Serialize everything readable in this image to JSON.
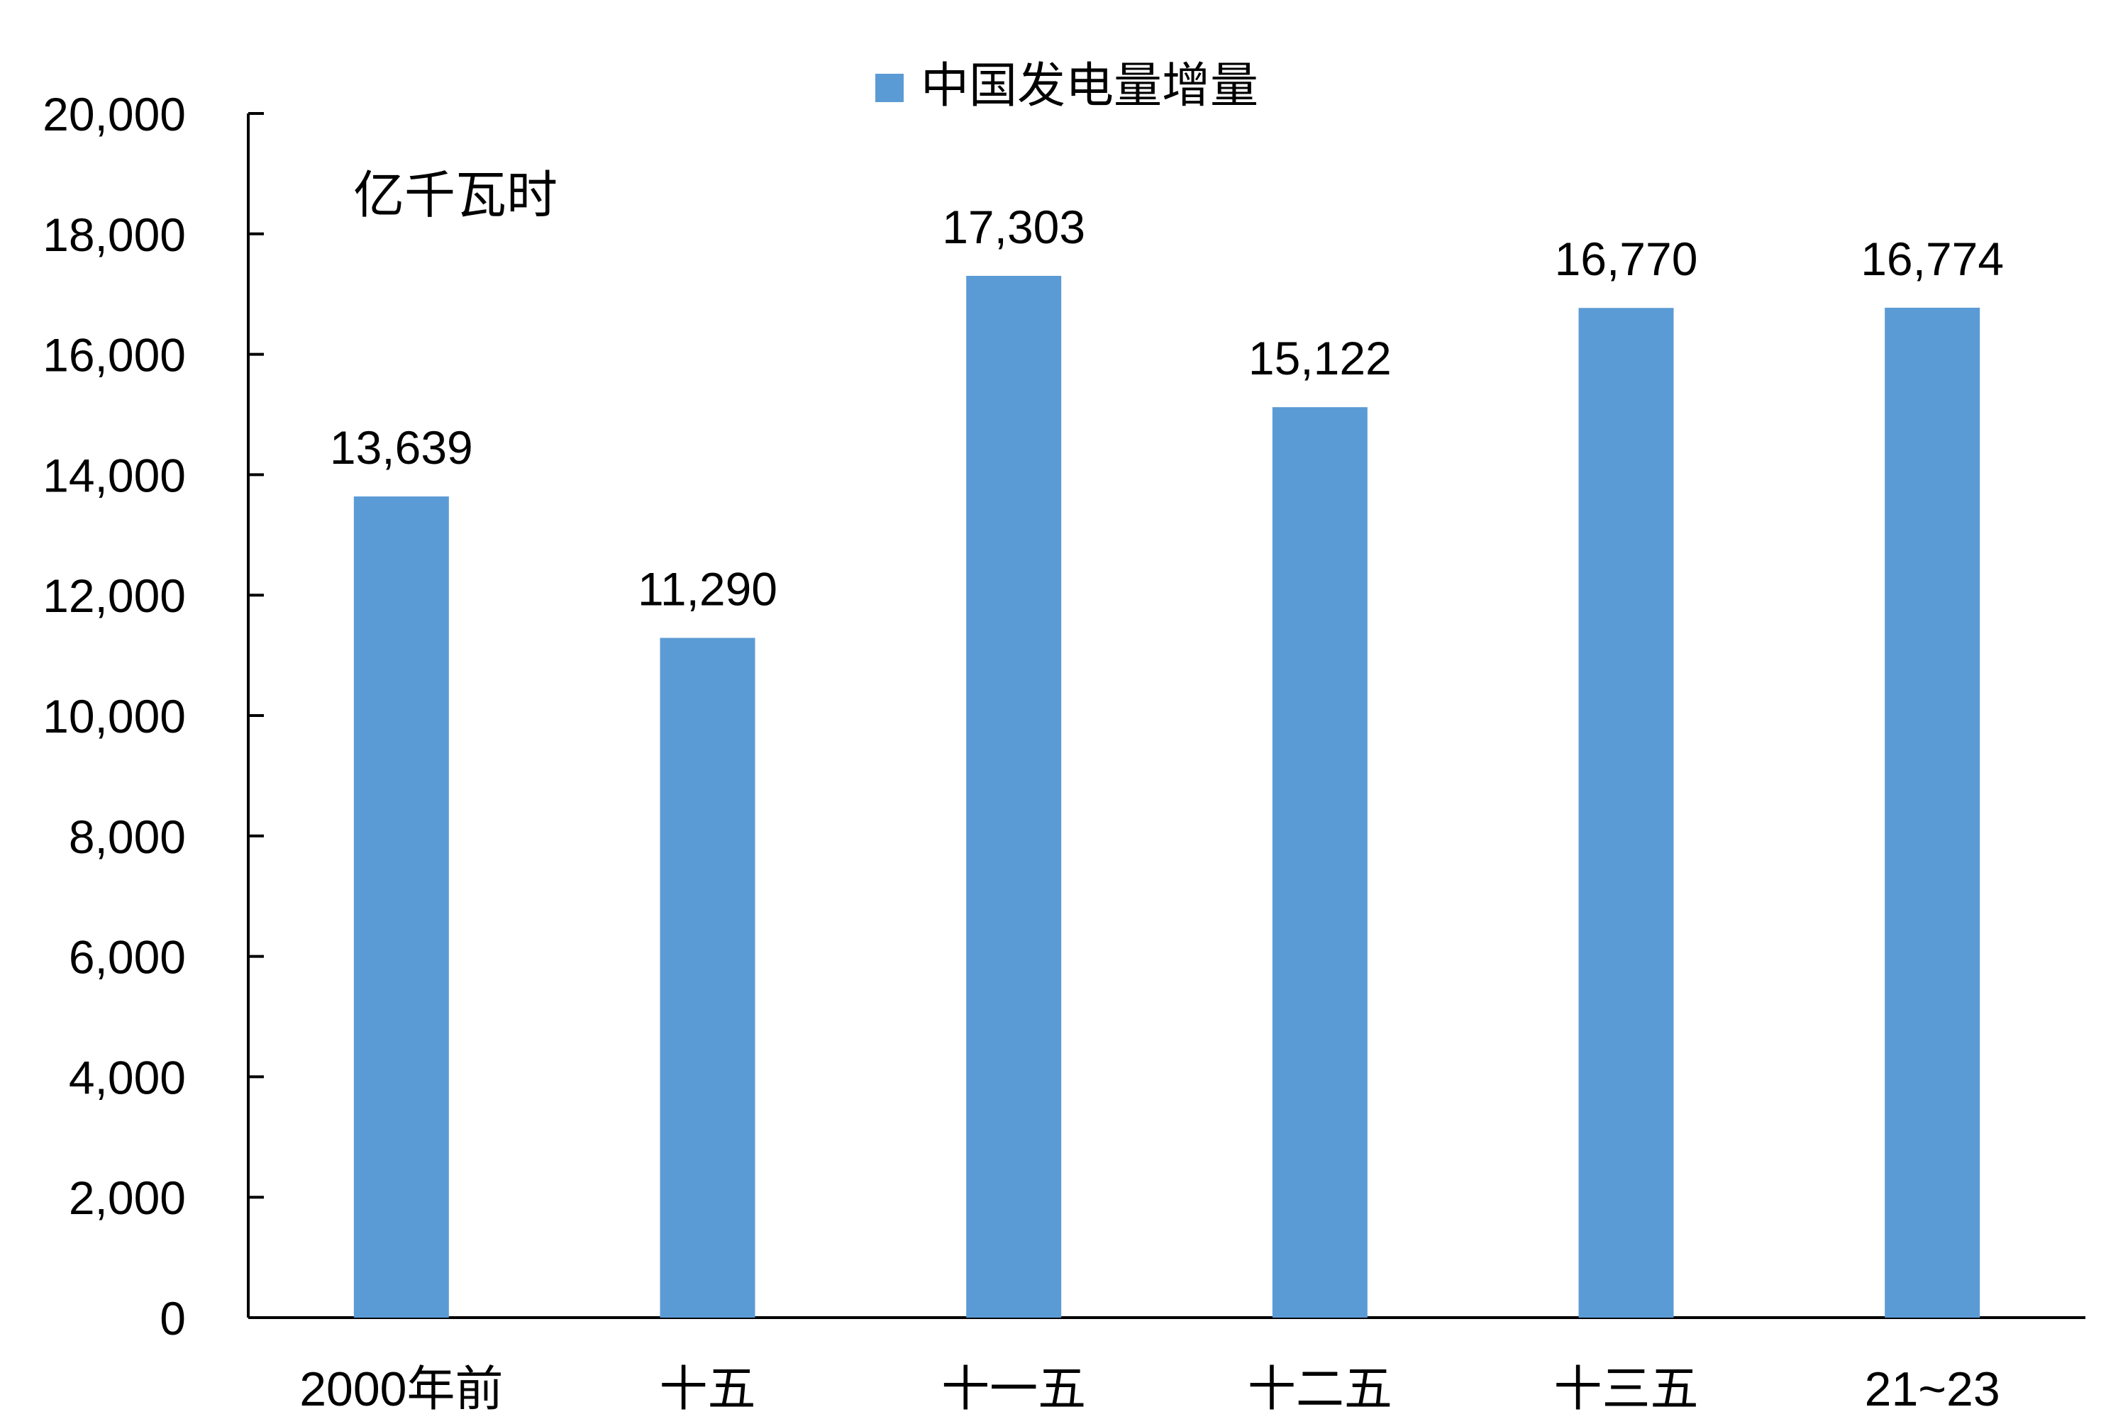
{
  "chart_data": {
    "type": "bar",
    "title": "",
    "xlabel": "",
    "ylabel": "",
    "unit_label": "亿千瓦时",
    "categories": [
      "2000年前",
      "十五",
      "十一五",
      "十二五",
      "十三五",
      "21~23"
    ],
    "series": [
      {
        "name": "中国发电量增量",
        "values": [
          13639,
          11290,
          17303,
          15122,
          16770,
          16774
        ],
        "value_labels": [
          "13,639",
          "11,290",
          "17,303",
          "15,122",
          "16,770",
          "16,774"
        ],
        "color": "#5B9BD5"
      }
    ],
    "ylim": [
      0,
      20000
    ],
    "yticks": [
      0,
      2000,
      4000,
      6000,
      8000,
      10000,
      12000,
      14000,
      16000,
      18000,
      20000
    ],
    "ytick_labels": [
      "0",
      "2,000",
      "4,000",
      "6,000",
      "8,000",
      "10,000",
      "12,000",
      "14,000",
      "16,000",
      "18,000",
      "20,000"
    ],
    "grid": false,
    "legend_position": "top-center",
    "axis_color": "#000000"
  }
}
